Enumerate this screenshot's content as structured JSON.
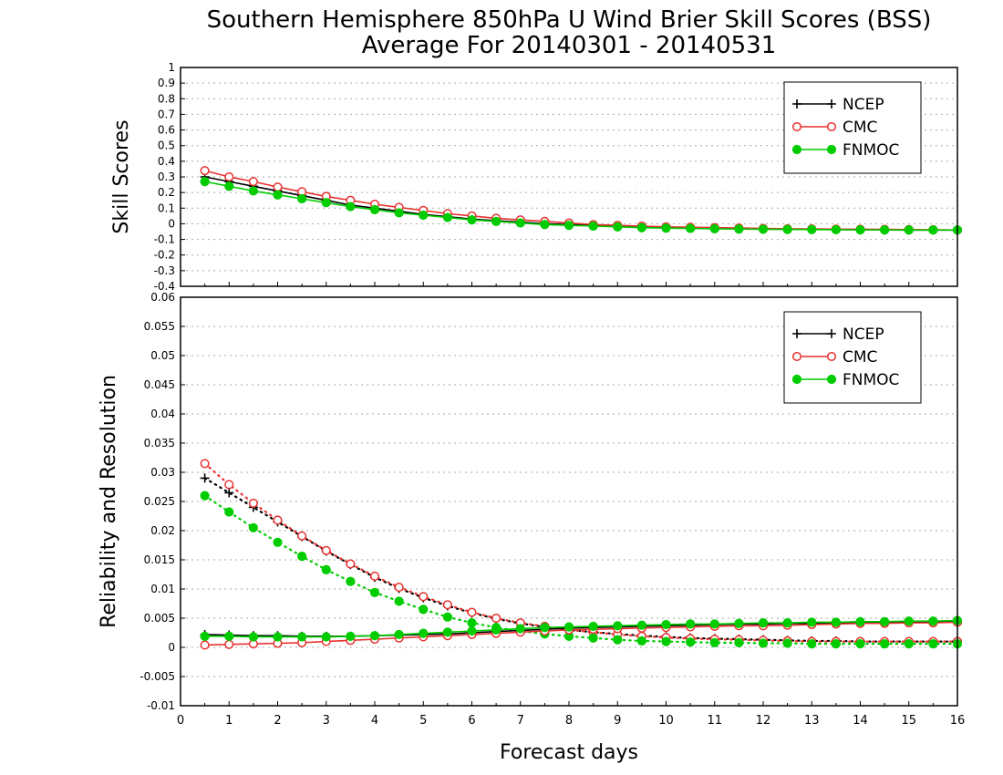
{
  "title": {
    "line1": "Southern Hemisphere 850hPa U Wind Brier Skill Scores (BSS)",
    "line2": "Average For 20140301 - 20140531"
  },
  "colors": {
    "NCEP": "#000000",
    "CMC": "#e8312f",
    "FNMOC": "#00cc00",
    "grid": "#aaaaaa"
  },
  "chart_data": [
    {
      "type": "line",
      "panel": "top",
      "ylabel": "Skill Scores",
      "xlabel": "",
      "xlim": [
        0,
        16
      ],
      "ylim": [
        -0.4,
        1
      ],
      "yticks": [
        "1",
        "0.9",
        "0.8",
        "0.7",
        "0.6",
        "0.5",
        "0.4",
        "0.3",
        "0.2",
        "0.1",
        "0",
        "-0.1",
        "-0.2",
        "-0.3",
        "-0.4"
      ],
      "legend": {
        "placement": "top-right",
        "entries": [
          "NCEP",
          "CMC",
          "FNMOC"
        ]
      },
      "grid": true,
      "x": [
        0.5,
        1,
        1.5,
        2,
        2.5,
        3,
        3.5,
        4,
        4.5,
        5,
        5.5,
        6,
        6.5,
        7,
        7.5,
        8,
        8.5,
        9,
        9.5,
        10,
        10.5,
        11,
        11.5,
        12,
        12.5,
        13,
        13.5,
        14,
        14.5,
        15,
        15.5,
        16
      ],
      "series": [
        {
          "name": "NCEP",
          "style": "solid",
          "marker": "plus",
          "values": [
            0.3,
            0.27,
            0.24,
            0.21,
            0.18,
            0.15,
            0.12,
            0.1,
            0.08,
            0.06,
            0.045,
            0.03,
            0.02,
            0.01,
            0.0,
            -0.005,
            -0.01,
            -0.015,
            -0.02,
            -0.025,
            -0.028,
            -0.03,
            -0.032,
            -0.034,
            -0.035,
            -0.036,
            -0.037,
            -0.038,
            -0.039,
            -0.04,
            -0.04,
            -0.04
          ]
        },
        {
          "name": "CMC",
          "style": "solid",
          "marker": "open-circle",
          "values": [
            0.34,
            0.3,
            0.27,
            0.235,
            0.205,
            0.175,
            0.15,
            0.125,
            0.105,
            0.085,
            0.065,
            0.05,
            0.035,
            0.025,
            0.015,
            0.005,
            -0.005,
            -0.01,
            -0.015,
            -0.02,
            -0.022,
            -0.025,
            -0.027,
            -0.03,
            -0.032,
            -0.033,
            -0.034,
            -0.035,
            -0.036,
            -0.037,
            -0.038,
            -0.04
          ]
        },
        {
          "name": "FNMOC",
          "style": "solid",
          "marker": "filled-circle",
          "values": [
            0.27,
            0.24,
            0.21,
            0.185,
            0.16,
            0.135,
            0.11,
            0.09,
            0.07,
            0.055,
            0.04,
            0.025,
            0.015,
            0.005,
            -0.005,
            -0.01,
            -0.015,
            -0.02,
            -0.025,
            -0.028,
            -0.03,
            -0.032,
            -0.034,
            -0.035,
            -0.036,
            -0.037,
            -0.038,
            -0.039,
            -0.04,
            -0.04,
            -0.04,
            -0.04
          ]
        }
      ]
    },
    {
      "type": "line",
      "panel": "bottom",
      "ylabel": "Reliability and Resolution",
      "xlabel": "Forecast days",
      "xlim": [
        0,
        16
      ],
      "ylim": [
        -0.01,
        0.06
      ],
      "yticks": [
        "0.06",
        "0.055",
        "0.05",
        "0.045",
        "0.04",
        "0.035",
        "0.03",
        "0.025",
        "0.02",
        "0.015",
        "0.01",
        "0.005",
        "0",
        "-0.005",
        "-0.01"
      ],
      "xticks": [
        "0",
        "1",
        "2",
        "3",
        "4",
        "5",
        "6",
        "7",
        "8",
        "9",
        "10",
        "11",
        "12",
        "13",
        "14",
        "15",
        "16"
      ],
      "legend": {
        "placement": "top-right",
        "entries": [
          "NCEP",
          "CMC",
          "FNMOC"
        ]
      },
      "grid": true,
      "x": [
        0.5,
        1,
        1.5,
        2,
        2.5,
        3,
        3.5,
        4,
        4.5,
        5,
        5.5,
        6,
        6.5,
        7,
        7.5,
        8,
        8.5,
        9,
        9.5,
        10,
        10.5,
        11,
        11.5,
        12,
        12.5,
        13,
        13.5,
        14,
        14.5,
        15,
        15.5,
        16
      ],
      "series": [
        {
          "name": "NCEP",
          "style": "dotted",
          "marker": "plus",
          "values": [
            0.029,
            0.0265,
            0.024,
            0.0215,
            0.019,
            0.0165,
            0.0142,
            0.012,
            0.0101,
            0.0085,
            0.0071,
            0.0059,
            0.0049,
            0.0041,
            0.0035,
            0.003,
            0.0026,
            0.0023,
            0.002,
            0.0018,
            0.0016,
            0.0015,
            0.0014,
            0.0013,
            0.0012,
            0.0011,
            0.0011,
            0.001,
            0.001,
            0.001,
            0.001,
            0.001
          ]
        },
        {
          "name": "CMC",
          "style": "dotted",
          "marker": "open-circle",
          "values": [
            0.0315,
            0.0279,
            0.0247,
            0.0218,
            0.0191,
            0.0166,
            0.0143,
            0.0122,
            0.0103,
            0.0087,
            0.0073,
            0.006,
            0.005,
            0.0042,
            0.0036,
            0.003,
            0.0026,
            0.0022,
            0.0019,
            0.0017,
            0.0015,
            0.0014,
            0.0013,
            0.0012,
            0.0011,
            0.001,
            0.001,
            0.001,
            0.001,
            0.001,
            0.001,
            0.001
          ]
        },
        {
          "name": "FNMOC",
          "style": "dotted",
          "marker": "filled-circle",
          "values": [
            0.026,
            0.0232,
            0.0205,
            0.018,
            0.0156,
            0.0133,
            0.0113,
            0.0094,
            0.0079,
            0.0065,
            0.0052,
            0.0042,
            0.0034,
            0.0028,
            0.0023,
            0.0019,
            0.0016,
            0.0013,
            0.0011,
            0.001,
            0.0009,
            0.0008,
            0.0008,
            0.0007,
            0.0007,
            0.0006,
            0.0006,
            0.0006,
            0.0006,
            0.0006,
            0.0006,
            0.0006
          ]
        },
        {
          "name": "NCEP",
          "style": "solid",
          "marker": "plus",
          "values": [
            0.0022,
            0.0021,
            0.002,
            0.002,
            0.0019,
            0.0019,
            0.0019,
            0.002,
            0.0021,
            0.0022,
            0.0023,
            0.0025,
            0.0027,
            0.0029,
            0.0031,
            0.0033,
            0.0034,
            0.0035,
            0.0036,
            0.0037,
            0.0038,
            0.0039,
            0.004,
            0.004,
            0.0041,
            0.0041,
            0.0042,
            0.0042,
            0.0043,
            0.0043,
            0.0044,
            0.0044
          ]
        },
        {
          "name": "CMC",
          "style": "solid",
          "marker": "open-circle",
          "values": [
            0.0004,
            0.0005,
            0.0006,
            0.0007,
            0.0008,
            0.001,
            0.0012,
            0.0014,
            0.0016,
            0.0018,
            0.002,
            0.0022,
            0.0024,
            0.0026,
            0.0028,
            0.003,
            0.0031,
            0.0032,
            0.0033,
            0.0034,
            0.0035,
            0.0036,
            0.0037,
            0.0037,
            0.0038,
            0.0039,
            0.004,
            0.0041,
            0.0041,
            0.0042,
            0.0042,
            0.0043
          ]
        },
        {
          "name": "FNMOC",
          "style": "solid",
          "marker": "filled-circle",
          "values": [
            0.0019,
            0.0019,
            0.0018,
            0.0018,
            0.0018,
            0.0018,
            0.0019,
            0.002,
            0.0022,
            0.0024,
            0.0026,
            0.0028,
            0.003,
            0.0032,
            0.0034,
            0.0035,
            0.0036,
            0.0037,
            0.0038,
            0.0039,
            0.004,
            0.004,
            0.0041,
            0.0042,
            0.0042,
            0.0043,
            0.0043,
            0.0044,
            0.0044,
            0.0045,
            0.0045,
            0.0046
          ]
        }
      ]
    }
  ]
}
